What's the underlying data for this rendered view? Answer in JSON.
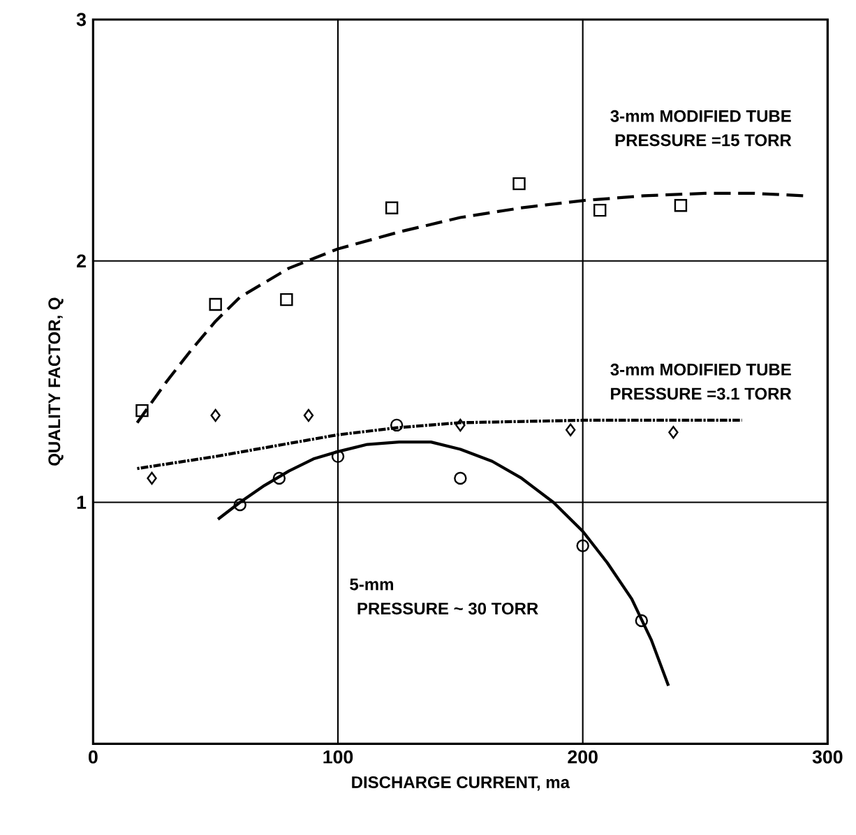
{
  "chart_data": {
    "type": "line",
    "xlabel": "DISCHARGE CURRENT, ma",
    "ylabel": "QUALITY FACTOR, Q",
    "xlim": [
      0,
      300
    ],
    "ylim": [
      0,
      3
    ],
    "xticks": [
      0,
      100,
      200,
      300
    ],
    "yticks": [
      {
        "value": 0,
        "label": null
      },
      1,
      2,
      3
    ],
    "grid": true,
    "series": [
      {
        "type": "scatter",
        "marker": "square",
        "color": "#000000",
        "x": [
          20,
          50,
          79,
          122,
          174,
          207,
          240
        ],
        "values": [
          1.38,
          1.82,
          1.84,
          2.22,
          2.32,
          2.21,
          2.23
        ]
      },
      {
        "type": "scatter",
        "marker": "diamond",
        "color": "#000000",
        "x": [
          24,
          50,
          88,
          150,
          195,
          237
        ],
        "values": [
          1.1,
          1.36,
          1.36,
          1.32,
          1.3,
          1.29
        ]
      },
      {
        "type": "scatter",
        "marker": "circle",
        "color": "#000000",
        "x": [
          60,
          76,
          100,
          124,
          150,
          200,
          224
        ],
        "values": [
          0.99,
          1.1,
          1.19,
          1.32,
          1.1,
          0.82,
          0.51
        ]
      },
      {
        "line_style": "dashed",
        "color": "#000000",
        "x": [
          18,
          30,
          40,
          50,
          60,
          80,
          100,
          125,
          150,
          175,
          200,
          225,
          250,
          270,
          290
        ],
        "values": [
          1.33,
          1.5,
          1.63,
          1.75,
          1.85,
          1.97,
          2.05,
          2.12,
          2.18,
          2.22,
          2.25,
          2.27,
          2.28,
          2.28,
          2.27
        ]
      },
      {
        "line_style": "dotted",
        "color": "#000000",
        "x": [
          18,
          50,
          100,
          125,
          150,
          200,
          265
        ],
        "values": [
          1.14,
          1.19,
          1.28,
          1.31,
          1.33,
          1.34,
          1.34
        ]
      },
      {
        "line_style": "solid",
        "color": "#000000",
        "x": [
          51,
          60,
          70,
          80,
          90,
          100,
          112,
          125,
          138,
          150,
          163,
          175,
          188,
          200,
          210,
          220,
          228,
          235
        ],
        "values": [
          0.93,
          1.0,
          1.07,
          1.13,
          1.18,
          1.21,
          1.24,
          1.25,
          1.25,
          1.22,
          1.17,
          1.1,
          1.0,
          0.88,
          0.75,
          0.6,
          0.43,
          0.24
        ]
      }
    ],
    "annotations": [
      "3-mm MODIFIED TUBE",
      "PRESSURE =15 TORR",
      "3-mm MODIFIED TUBE",
      "PRESSURE =3.1 TORR",
      "5-mm",
      "PRESSURE ~ 30 TORR"
    ]
  }
}
